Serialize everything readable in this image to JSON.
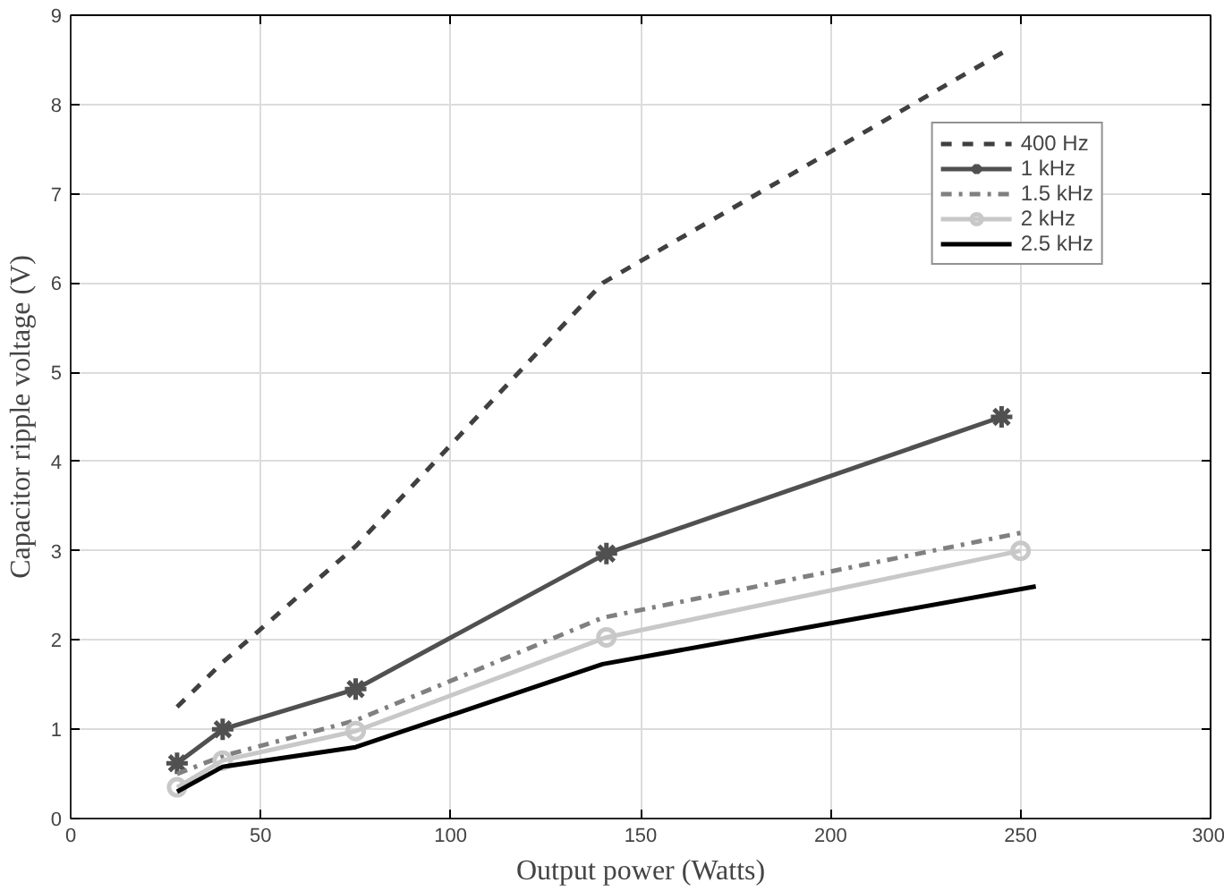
{
  "chart_data": {
    "type": "line",
    "xlabel": "Output power (Watts)",
    "ylabel": "Capacitor ripple voltage (V)",
    "xlim": [
      0,
      300
    ],
    "xticks": [
      0,
      50,
      100,
      150,
      200,
      250,
      300
    ],
    "ylim": [
      0,
      9
    ],
    "yticks": [
      0,
      1,
      2,
      3,
      4,
      5,
      6,
      7,
      8,
      9
    ],
    "grid": true,
    "legend": "top right",
    "series": [
      {
        "name": "400 Hz",
        "color": "#404040",
        "line_style": "dashed",
        "marker": "none",
        "x": [
          28,
          40,
          75,
          140,
          246
        ],
        "values": [
          1.25,
          1.75,
          3.05,
          6.0,
          8.6
        ]
      },
      {
        "name": "1 kHz",
        "color": "#505050",
        "line_style": "solid",
        "marker": "cross",
        "x": [
          28,
          40,
          75,
          141,
          245
        ],
        "values": [
          0.62,
          1.0,
          1.45,
          2.97,
          4.5
        ]
      },
      {
        "name": "1.5 kHz",
        "color": "#808080",
        "line_style": "dashdot",
        "marker": "none",
        "x": [
          28,
          40,
          75,
          140,
          250
        ],
        "values": [
          0.5,
          0.7,
          1.1,
          2.25,
          3.2
        ]
      },
      {
        "name": "2 kHz",
        "color": "#c8c8c8",
        "line_style": "solid",
        "marker": "circle",
        "x": [
          28,
          40,
          75,
          141,
          250
        ],
        "values": [
          0.35,
          0.65,
          0.98,
          2.03,
          3.0
        ]
      },
      {
        "name": "2.5 kHz",
        "color": "#000000",
        "line_style": "solid",
        "marker": "none",
        "x": [
          28,
          40,
          75,
          140,
          254
        ],
        "values": [
          0.3,
          0.58,
          0.8,
          1.73,
          2.6
        ]
      }
    ]
  }
}
